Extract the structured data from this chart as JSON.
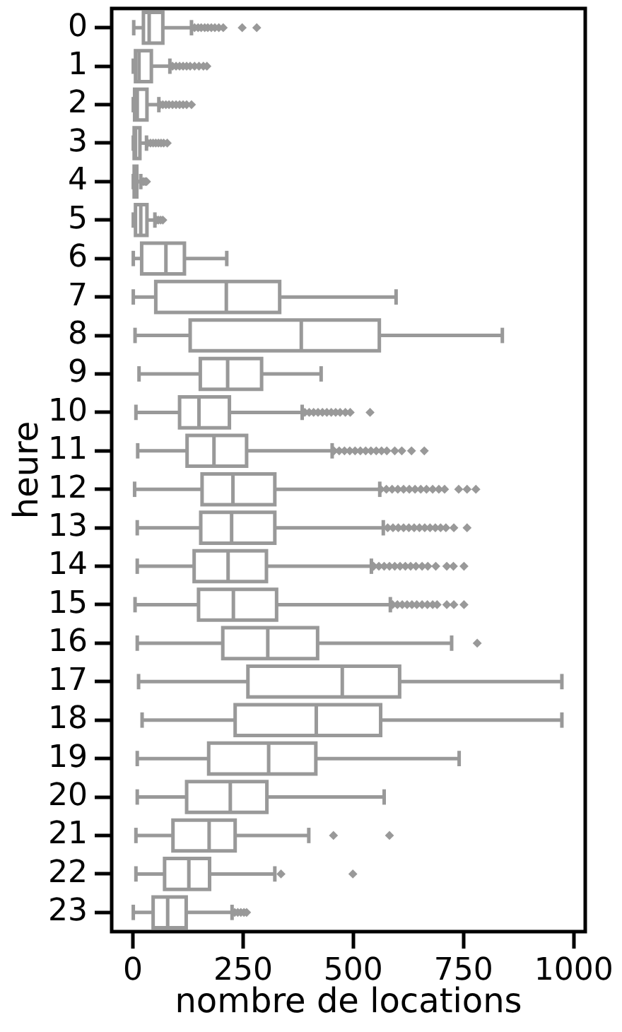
{
  "chart_data": {
    "type": "box",
    "orientation": "horizontal",
    "xlabel": "nombre de locations",
    "ylabel": "heure",
    "categories": [
      "0",
      "1",
      "2",
      "3",
      "4",
      "5",
      "6",
      "7",
      "8",
      "9",
      "10",
      "11",
      "12",
      "13",
      "14",
      "15",
      "16",
      "17",
      "18",
      "19",
      "20",
      "21",
      "22",
      "23"
    ],
    "color": "#999999",
    "marker": "diamond",
    "grid": false,
    "legend": false,
    "xlim": [
      -48,
      1026
    ],
    "xticks": [
      0,
      250,
      500,
      750,
      1000
    ],
    "boxes": [
      {
        "low": 2,
        "q1": 24,
        "median": 37,
        "q3": 68,
        "high": 133,
        "outliers": [
          140,
          148,
          155,
          163,
          170,
          178,
          186,
          195,
          205,
          248,
          281
        ]
      },
      {
        "low": 1,
        "q1": 6,
        "median": 14,
        "q3": 42,
        "high": 84,
        "outliers": [
          90,
          98,
          106,
          114,
          122,
          130,
          140,
          150,
          160,
          168
        ]
      },
      {
        "low": 1,
        "q1": 4,
        "median": 10,
        "q3": 32,
        "high": 59,
        "outliers": [
          62,
          68,
          75,
          82,
          90,
          98,
          106,
          114,
          122,
          133
        ]
      },
      {
        "low": 1,
        "q1": 3,
        "median": 6,
        "q3": 16,
        "high": 31,
        "outliers": [
          34,
          40,
          46,
          52,
          58,
          64,
          70,
          78
        ]
      },
      {
        "low": 1,
        "q1": 3,
        "median": 5,
        "q3": 9,
        "high": 18,
        "outliers": [
          20,
          24,
          28,
          31
        ]
      },
      {
        "low": 1,
        "q1": 6,
        "median": 18,
        "q3": 32,
        "high": 50,
        "outliers": [
          54,
          58,
          63,
          68
        ]
      },
      {
        "low": 1,
        "q1": 20,
        "median": 75,
        "q3": 117,
        "high": 213
      },
      {
        "low": 1,
        "q1": 52,
        "median": 212,
        "q3": 333,
        "high": 597
      },
      {
        "low": 5,
        "q1": 130,
        "median": 382,
        "q3": 559,
        "high": 838
      },
      {
        "low": 14,
        "q1": 153,
        "median": 215,
        "q3": 292,
        "high": 427
      },
      {
        "low": 7,
        "q1": 106,
        "median": 150,
        "q3": 219,
        "high": 384,
        "outliers": [
          390,
          400,
          410,
          420,
          430,
          440,
          450,
          460,
          470,
          482,
          493,
          538
        ]
      },
      {
        "low": 11,
        "q1": 123,
        "median": 184,
        "q3": 258,
        "high": 452,
        "outliers": [
          456,
          468,
          480,
          492,
          504,
          516,
          528,
          540,
          552,
          564,
          576,
          594,
          610,
          632,
          661
        ]
      },
      {
        "low": 4,
        "q1": 157,
        "median": 227,
        "q3": 322,
        "high": 560,
        "outliers": [
          562,
          575,
          588,
          601,
          614,
          627,
          640,
          653,
          666,
          680,
          694,
          707,
          739,
          758,
          778
        ]
      },
      {
        "low": 10,
        "q1": 154,
        "median": 224,
        "q3": 322,
        "high": 568,
        "outliers": [
          578,
          590,
          602,
          614,
          626,
          638,
          650,
          662,
          674,
          686,
          698,
          710,
          728,
          758
        ]
      },
      {
        "low": 10,
        "q1": 139,
        "median": 216,
        "q3": 303,
        "high": 541,
        "outliers": [
          546,
          558,
          570,
          582,
          594,
          606,
          618,
          630,
          642,
          656,
          669,
          687,
          712,
          727,
          751
        ]
      },
      {
        "low": 5,
        "q1": 149,
        "median": 228,
        "q3": 326,
        "high": 584,
        "outliers": [
          589,
          600,
          611,
          622,
          633,
          644,
          656,
          668,
          680,
          690,
          712,
          728,
          751
        ]
      },
      {
        "low": 10,
        "q1": 204,
        "median": 306,
        "q3": 419,
        "high": 723,
        "outliers": [
          781
        ]
      },
      {
        "low": 13,
        "q1": 261,
        "median": 475,
        "q3": 605,
        "high": 973
      },
      {
        "low": 21,
        "q1": 232,
        "median": 416,
        "q3": 562,
        "high": 973
      },
      {
        "low": 10,
        "q1": 172,
        "median": 308,
        "q3": 415,
        "high": 740
      },
      {
        "low": 10,
        "q1": 122,
        "median": 221,
        "q3": 304,
        "high": 570
      },
      {
        "low": 7,
        "q1": 91,
        "median": 173,
        "q3": 232,
        "high": 399,
        "outliers": [
          455,
          582
        ]
      },
      {
        "low": 7,
        "q1": 72,
        "median": 127,
        "q3": 174,
        "high": 322,
        "outliers": [
          336,
          499
        ]
      },
      {
        "low": 1,
        "q1": 46,
        "median": 79,
        "q3": 121,
        "high": 225,
        "outliers": [
          231,
          238,
          245,
          252,
          258
        ]
      }
    ]
  }
}
